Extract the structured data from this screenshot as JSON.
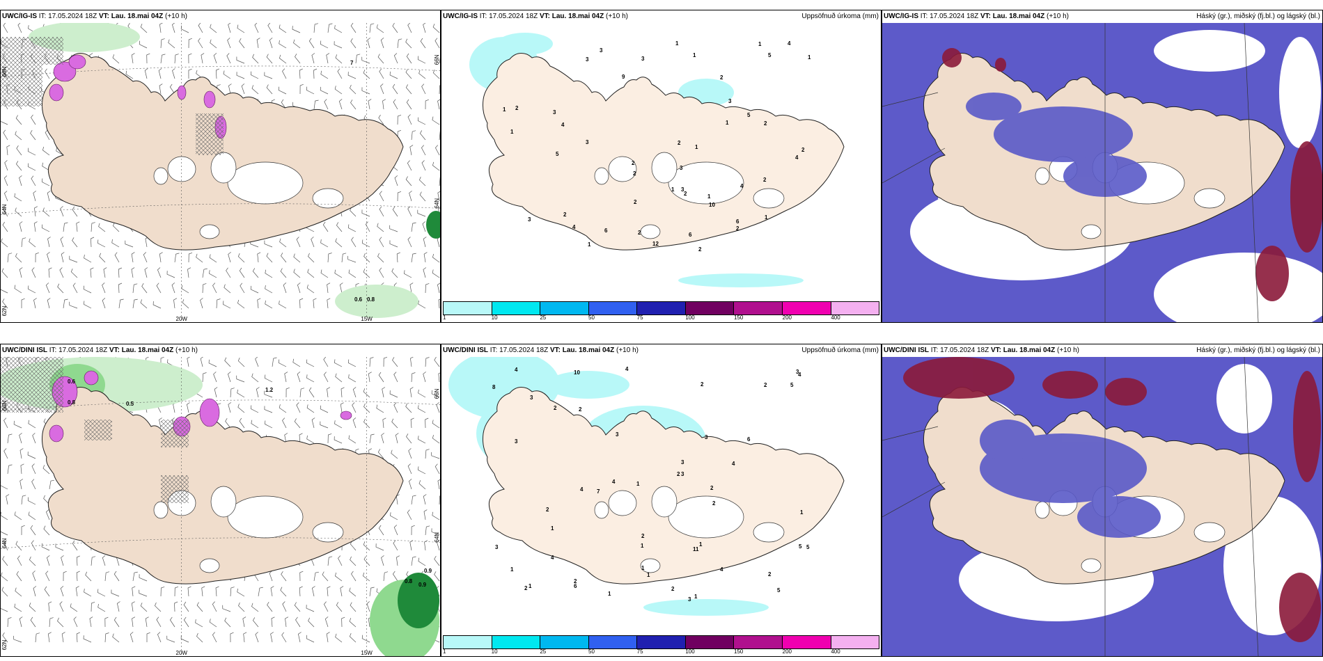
{
  "panels": [
    {
      "model": "UWC/IG-IS",
      "it_label": "IT:",
      "it": "17.05.2024 18Z",
      "vt_label": "VT:",
      "vt": "Lau. 18.mai 04Z",
      "lead": "(+10 h)",
      "right_title": ""
    },
    {
      "model": "UWC/IG-IS",
      "it_label": "IT:",
      "it": "17.05.2024 18Z",
      "vt_label": "VT:",
      "vt": "Lau. 18.mai 04Z",
      "lead": "(+10 h)",
      "right_title": "Uppsöfnuð úrkoma (mm)"
    },
    {
      "model": "UWC/IG-IS",
      "it_label": "IT:",
      "it": "17.05.2024 18Z",
      "vt_label": "VT:",
      "vt": "Lau. 18.mai 04Z",
      "lead": "(+10 h)",
      "right_title": "Háský (gr.), miðský (fj.bl.) og lágský (bl.)"
    },
    {
      "model": "UWC/DINI ISL",
      "it_label": "IT:",
      "it": "17.05.2024 18Z",
      "vt_label": "VT:",
      "vt": "Lau. 18.mai 04Z",
      "lead": "(+10 h)",
      "right_title": ""
    },
    {
      "model": "UWC/DINI ISL",
      "it_label": "IT:",
      "it": "17.05.2024 18Z",
      "vt_label": "VT:",
      "vt": "Lau. 18.mai 04Z",
      "lead": "(+10 h)",
      "right_title": "Uppsöfnuð úrkoma (mm)"
    },
    {
      "model": "UWC/DINI ISL",
      "it_label": "IT:",
      "it": "17.05.2024 18Z",
      "vt_label": "VT:",
      "vt": "Lau. 18.mai 04Z",
      "lead": "(+10 h)",
      "right_title": "Háský (gr.), miðský (fj.bl.) og lágský (bl.)"
    }
  ],
  "axis_labels": {
    "lon_20w": "20W",
    "lon_15w": "15W",
    "lat_66n": "66N",
    "lat_64n": "64N",
    "lat_62n": "62N"
  },
  "precip_colorbar": {
    "colors": [
      "#b8f8f8",
      "#00e8f0",
      "#00b8f0",
      "#3060f0",
      "#2020b0",
      "#700060",
      "#b0108e",
      "#f000b0",
      "#f4b0f0"
    ],
    "labels": [
      "1",
      "10",
      "25",
      "50",
      "75",
      "100",
      "150",
      "200",
      "400"
    ]
  },
  "wind_panel_values": {
    "ig": [
      "0.6",
      "0.8",
      "7"
    ],
    "dini": [
      "0.6",
      "0.8",
      "0.5",
      "1.2",
      "0.9",
      "0.8",
      "0.9"
    ]
  },
  "precip_values": {
    "ig": [
      "2",
      "3",
      "2",
      "3",
      "5",
      "6",
      "4",
      "3",
      "2",
      "4",
      "3",
      "1",
      "2",
      "3",
      "1",
      "1",
      "1",
      "5",
      "4",
      "2",
      "6",
      "2",
      "1",
      "2",
      "1",
      "3",
      "5",
      "4",
      "12",
      "9",
      "10",
      "4",
      "2",
      "6",
      "3",
      "2",
      "1",
      "2",
      "2",
      "1",
      "3",
      "2",
      "1",
      "1",
      "1",
      "2",
      "1",
      "2",
      "3"
    ],
    "dini": [
      "1",
      "3",
      "2",
      "4",
      "10",
      "3",
      "4",
      "5",
      "4",
      "3",
      "2",
      "1",
      "4",
      "1",
      "2",
      "2",
      "3",
      "6",
      "7",
      "8",
      "11",
      "4",
      "3",
      "2",
      "6",
      "2",
      "3",
      "1",
      "4",
      "2",
      "1",
      "1",
      "2",
      "5",
      "4",
      "2",
      "5",
      "1",
      "3",
      "2",
      "3",
      "4",
      "5",
      "1",
      "2",
      "1",
      "1",
      "2",
      "2",
      "1",
      "3"
    ]
  },
  "colors": {
    "land": "#f0ddcc",
    "land_light": "#fbeee2",
    "glacier": "#ffffff",
    "wind_green_light": "#cdeecd",
    "wind_green": "#8fd98f",
    "wind_green_dark": "#1f8a3a",
    "wind_magenta": "#d96be0",
    "precip_light": "#b8f8f8",
    "cloud_high": "#5a5ac8",
    "cloud_mid": "#8a8ae6",
    "cloud_dark": "#8b1a3a",
    "cloud_red": "#b02a3a",
    "cloud_bg": "#5d5ac9"
  }
}
